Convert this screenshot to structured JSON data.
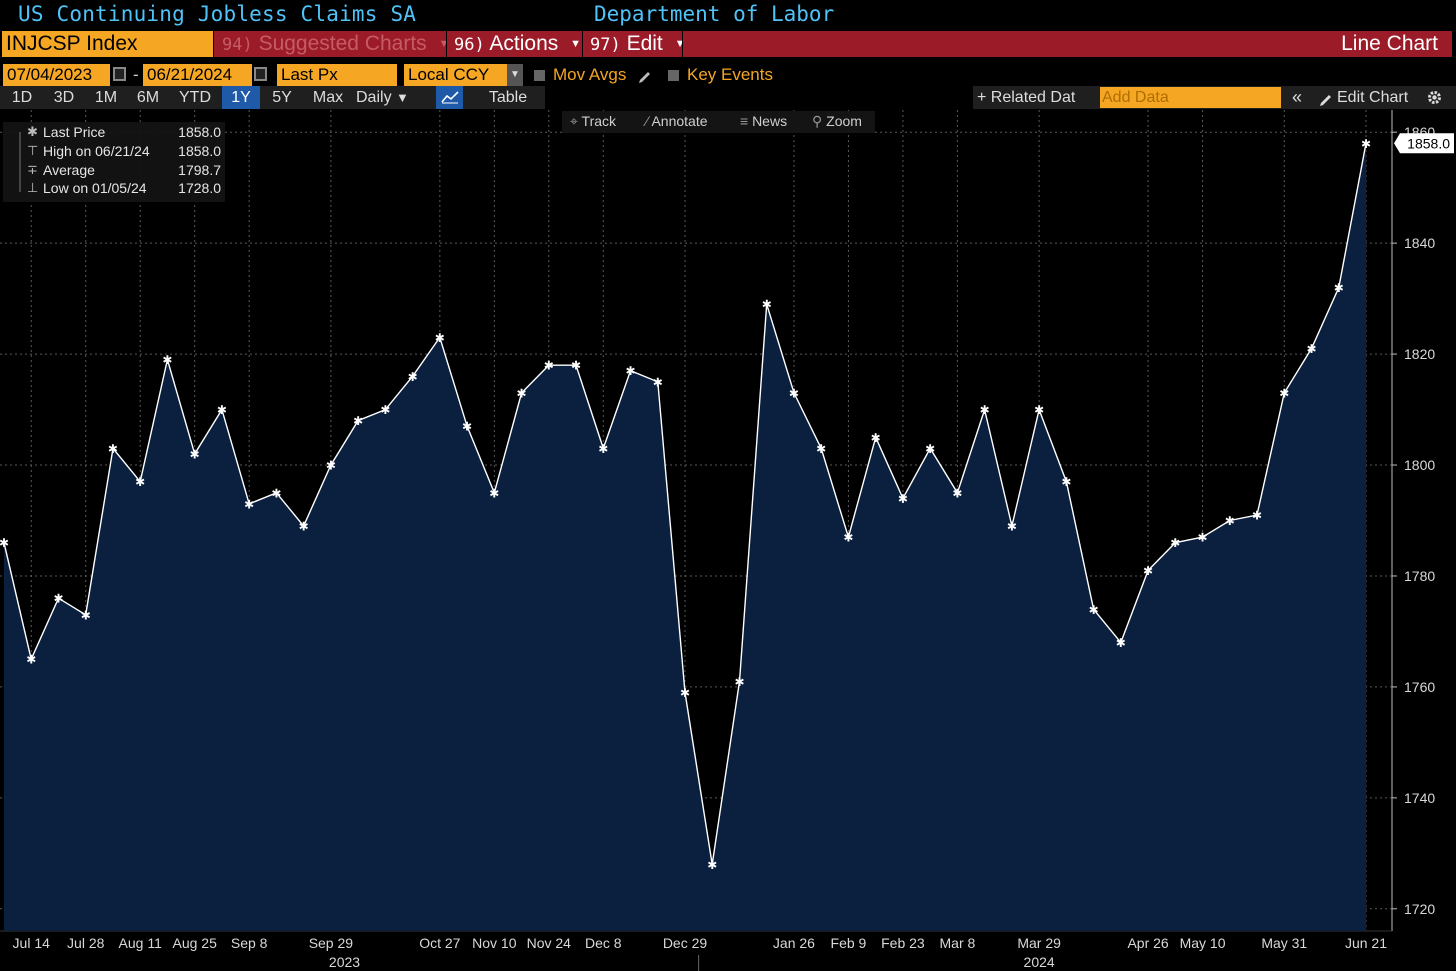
{
  "window": {
    "title": "US Continuing Jobless Claims SA",
    "source": "Department of Labor"
  },
  "command_bar": {
    "ticker": "INJCSP Index",
    "suggested_num": "94)",
    "suggested_label": "Suggested Charts",
    "actions_num": "96)",
    "actions_label": "Actions",
    "edit_num": "97)",
    "edit_label": "Edit",
    "chart_type_label": "Line Chart"
  },
  "date_row": {
    "start_date": "07/04/2023",
    "dash": "-",
    "end_date": "06/21/2024",
    "field": "Last Px",
    "currency": "Local CCY",
    "mov_avgs": "Mov Avgs",
    "key_events": "Key Events"
  },
  "period_row": {
    "periods": [
      "1D",
      "3D",
      "1M",
      "6M",
      "YTD",
      "1Y",
      "5Y",
      "Max"
    ],
    "active_period": "1Y",
    "frequency": "Daily",
    "table": "Table",
    "related_data": "+ Related Dat",
    "add_data_placeholder": "Add Data",
    "edit_chart": "Edit Chart"
  },
  "tools": {
    "track": "Track",
    "annotate": "Annotate",
    "news": "News",
    "zoom": "Zoom"
  },
  "legend": {
    "rows": [
      {
        "label": "Last Price",
        "value": "1858.0"
      },
      {
        "label": "High on 06/21/24",
        "value": "1858.0"
      },
      {
        "label": "Average",
        "value": "1798.7"
      },
      {
        "label": "Low on 01/05/24",
        "value": "1728.0"
      }
    ]
  },
  "colors": {
    "accent_orange": "#f5a623",
    "command_red": "#9b1b28",
    "title_blue": "#4fc3f7",
    "area_fill": "#0b1f3f",
    "line": "#ffffff"
  },
  "icons": {
    "calendar": "calendar-icon",
    "dropdown": "chevron-down-icon",
    "line_chart": "line-chart-icon",
    "collapse": "double-chevron-left-icon",
    "pencil": "pencil-icon",
    "gear": "gear-icon"
  },
  "chart_data": {
    "type": "area",
    "title": "US Continuing Jobless Claims SA",
    "series": [
      {
        "values": [
          1786,
          1765,
          1776,
          1773,
          1803,
          1797,
          1819,
          1802,
          1810,
          1793,
          1795,
          1789,
          1800,
          1808,
          1810,
          1816,
          1823,
          1807,
          1795,
          1813,
          1818,
          1818,
          1803,
          1817,
          1815,
          1759,
          1728,
          1761,
          1829,
          1813,
          1803,
          1787,
          1805,
          1794,
          1803,
          1795,
          1810,
          1789,
          1810,
          1797,
          1774,
          1768,
          1781,
          1786,
          1787,
          1790,
          1791,
          1813,
          1821,
          1832,
          1858
        ]
      }
    ],
    "ylim": [
      1716,
      1864
    ],
    "y_ticks": [
      1720,
      1740,
      1760,
      1780,
      1800,
      1820,
      1840,
      1860
    ],
    "last_value_label": "1858.0",
    "x_tick_labels": [
      {
        "label": "Jul 14",
        "index": 1
      },
      {
        "label": "Jul 28",
        "index": 3
      },
      {
        "label": "Aug 11",
        "index": 5
      },
      {
        "label": "Aug 25",
        "index": 7
      },
      {
        "label": "Sep 8",
        "index": 9
      },
      {
        "label": "Sep 29",
        "index": 12
      },
      {
        "label": "Oct 27",
        "index": 16
      },
      {
        "label": "Nov 10",
        "index": 18
      },
      {
        "label": "Nov 24",
        "index": 20
      },
      {
        "label": "Dec 8",
        "index": 22
      },
      {
        "label": "Dec 29",
        "index": 25
      },
      {
        "label": "Jan 26",
        "index": 29
      },
      {
        "label": "Feb 9",
        "index": 31
      },
      {
        "label": "Feb 23",
        "index": 33
      },
      {
        "label": "Mar 8",
        "index": 35
      },
      {
        "label": "Mar 29",
        "index": 38
      },
      {
        "label": "Apr 26",
        "index": 42
      },
      {
        "label": "May 10",
        "index": 44
      },
      {
        "label": "May 31",
        "index": 47
      },
      {
        "label": "Jun 21",
        "index": 50
      }
    ],
    "year_labels": [
      {
        "label": "2023",
        "index": 12.5
      },
      {
        "label": "2024",
        "index": 38
      }
    ],
    "grid": true
  }
}
